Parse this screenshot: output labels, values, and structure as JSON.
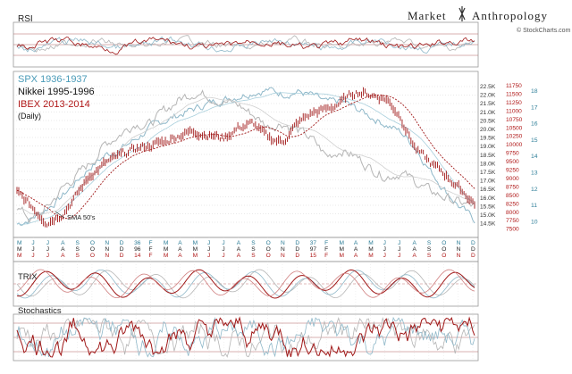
{
  "brand": {
    "name_left": "Market",
    "name_right": "Anthropology",
    "source": "© StockCharts.com"
  },
  "legend": {
    "spx": "SPX 1936-1937",
    "nikkei": "Nikkei 1995-1996",
    "ibex": "IBEX 2013-2014",
    "freq": "(Daily)"
  },
  "panels": {
    "rsi": "RSI",
    "trix": "TRIX",
    "stoch": "Stochastics"
  },
  "annotation": "SMA 50's",
  "colors": {
    "spx": "#8fb8c9",
    "nikkei": "#b5b5b5",
    "ibex": "#a01818",
    "grid": "#c8c8c8",
    "axis_nikkei": "#333333",
    "axis_ibex": "#b01818",
    "axis_spx": "#2f7f99"
  },
  "chart_data": {
    "type": "line",
    "axes": {
      "nikkei": [
        "22.5K",
        "22.0K",
        "21.5K",
        "21.0K",
        "20.5K",
        "20.0K",
        "19.5K",
        "19.0K",
        "18.5K",
        "18.0K",
        "17.5K",
        "17.0K",
        "16.5K",
        "16.0K",
        "15.5K",
        "15.0K",
        "14.5K"
      ],
      "ibex": [
        "11750",
        "11500",
        "11250",
        "11000",
        "10750",
        "10500",
        "10250",
        "10000",
        "9750",
        "9500",
        "9250",
        "9000",
        "8750",
        "8500",
        "8250",
        "8000",
        "7750",
        "7500"
      ],
      "spx": [
        "18",
        "17",
        "16",
        "15",
        "14",
        "13",
        "12",
        "11",
        "10"
      ]
    },
    "month_rows": {
      "spx": [
        "M",
        "J",
        "J",
        "A",
        "S",
        "O",
        "N",
        "D",
        "36",
        "F",
        "M",
        "A",
        "M",
        "J",
        "J",
        "A",
        "S",
        "O",
        "N",
        "D",
        "37",
        "F",
        "M",
        "A",
        "M",
        "J",
        "J",
        "A",
        "S",
        "O",
        "N",
        "D"
      ],
      "nikkei": [
        "M",
        "J",
        "J",
        "A",
        "S",
        "O",
        "N",
        "D",
        "96",
        "F",
        "M",
        "A",
        "M",
        "J",
        "J",
        "A",
        "S",
        "O",
        "N",
        "D",
        "97",
        "F",
        "M",
        "A",
        "M",
        "J",
        "J",
        "A",
        "S",
        "O",
        "N",
        "D"
      ],
      "ibex": [
        "M",
        "J",
        "J",
        "A",
        "S",
        "O",
        "N",
        "D",
        "14",
        "F",
        "M",
        "A",
        "M",
        "J",
        "J",
        "A",
        "S",
        "O",
        "N",
        "D",
        "15",
        "F",
        "M",
        "A",
        "M",
        "J",
        "J",
        "A",
        "S",
        "O",
        "N",
        "D"
      ]
    },
    "series": [
      {
        "name": "SPX 1936-1937",
        "values": [
          10.6,
          10.9,
          11.4,
          12.0,
          12.8,
          13.6,
          14.2,
          14.5,
          15.0,
          15.6,
          16.0,
          16.3,
          16.6,
          16.9,
          17.1,
          17.3,
          17.5,
          17.6,
          17.4,
          17.5,
          17.3,
          16.9,
          17.0,
          16.6,
          16.2,
          15.8,
          15.4,
          14.6,
          13.4,
          12.4,
          11.5,
          10.8
        ]
      },
      {
        "name": "Nikkei 1995-1996",
        "values": [
          16.0,
          15.3,
          15.9,
          16.9,
          17.6,
          18.3,
          19.3,
          19.8,
          20.4,
          20.3,
          21.0,
          21.6,
          22.0,
          21.8,
          21.5,
          21.3,
          20.8,
          20.2,
          20.4,
          20.0,
          19.5,
          18.6,
          19.0,
          18.6,
          18.0,
          17.6,
          17.8,
          17.3,
          16.8,
          16.5,
          16.2,
          16.0
        ]
      },
      {
        "name": "IBEX 2013-2014",
        "values": [
          8700,
          8300,
          7900,
          8100,
          8600,
          9200,
          9500,
          9700,
          9900,
          10000,
          10100,
          10300,
          10400,
          10300,
          10200,
          10500,
          10600,
          10200,
          10100,
          10600,
          10900,
          11000,
          11200,
          11500,
          11400,
          11300,
          10800,
          9900,
          9500,
          9200,
          8800,
          8400
        ]
      }
    ]
  }
}
